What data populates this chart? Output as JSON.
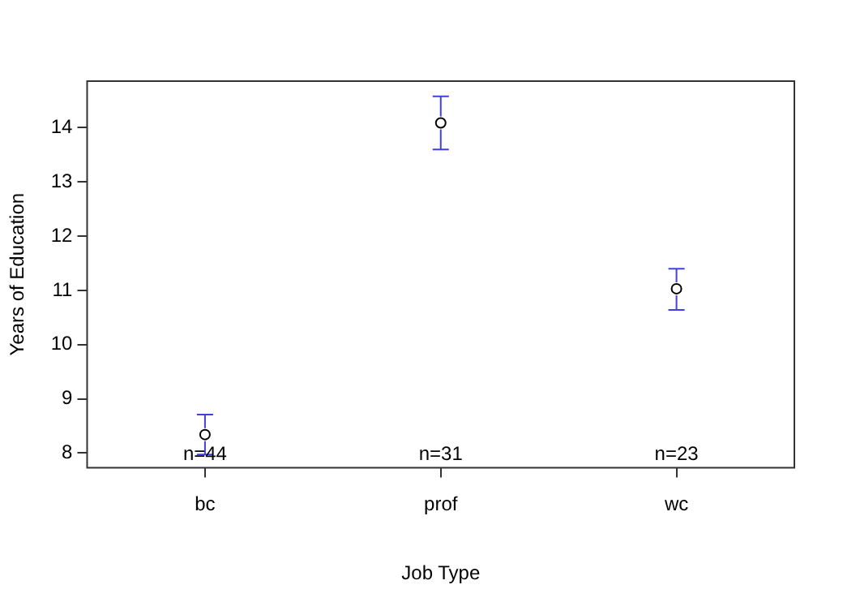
{
  "chart_data": {
    "type": "scatter",
    "xlabel": "Job Type",
    "ylabel": "Years of Education",
    "categories": [
      "bc",
      "prof",
      "wc"
    ],
    "series": [
      {
        "color": "#000000",
        "values": [
          8.34,
          14.09,
          11.03
        ],
        "errors": [
          [
            7.97,
            8.71
          ],
          [
            13.6,
            14.58
          ],
          [
            10.64,
            11.4
          ]
        ]
      }
    ],
    "ylim": [
      7.73,
      14.86
    ],
    "yticks": [
      8,
      9,
      10,
      11,
      12,
      13,
      14
    ],
    "grid": false,
    "legend": false,
    "marker": "circle",
    "annotations": [
      "n=44",
      "n=31",
      "n=23"
    ]
  }
}
